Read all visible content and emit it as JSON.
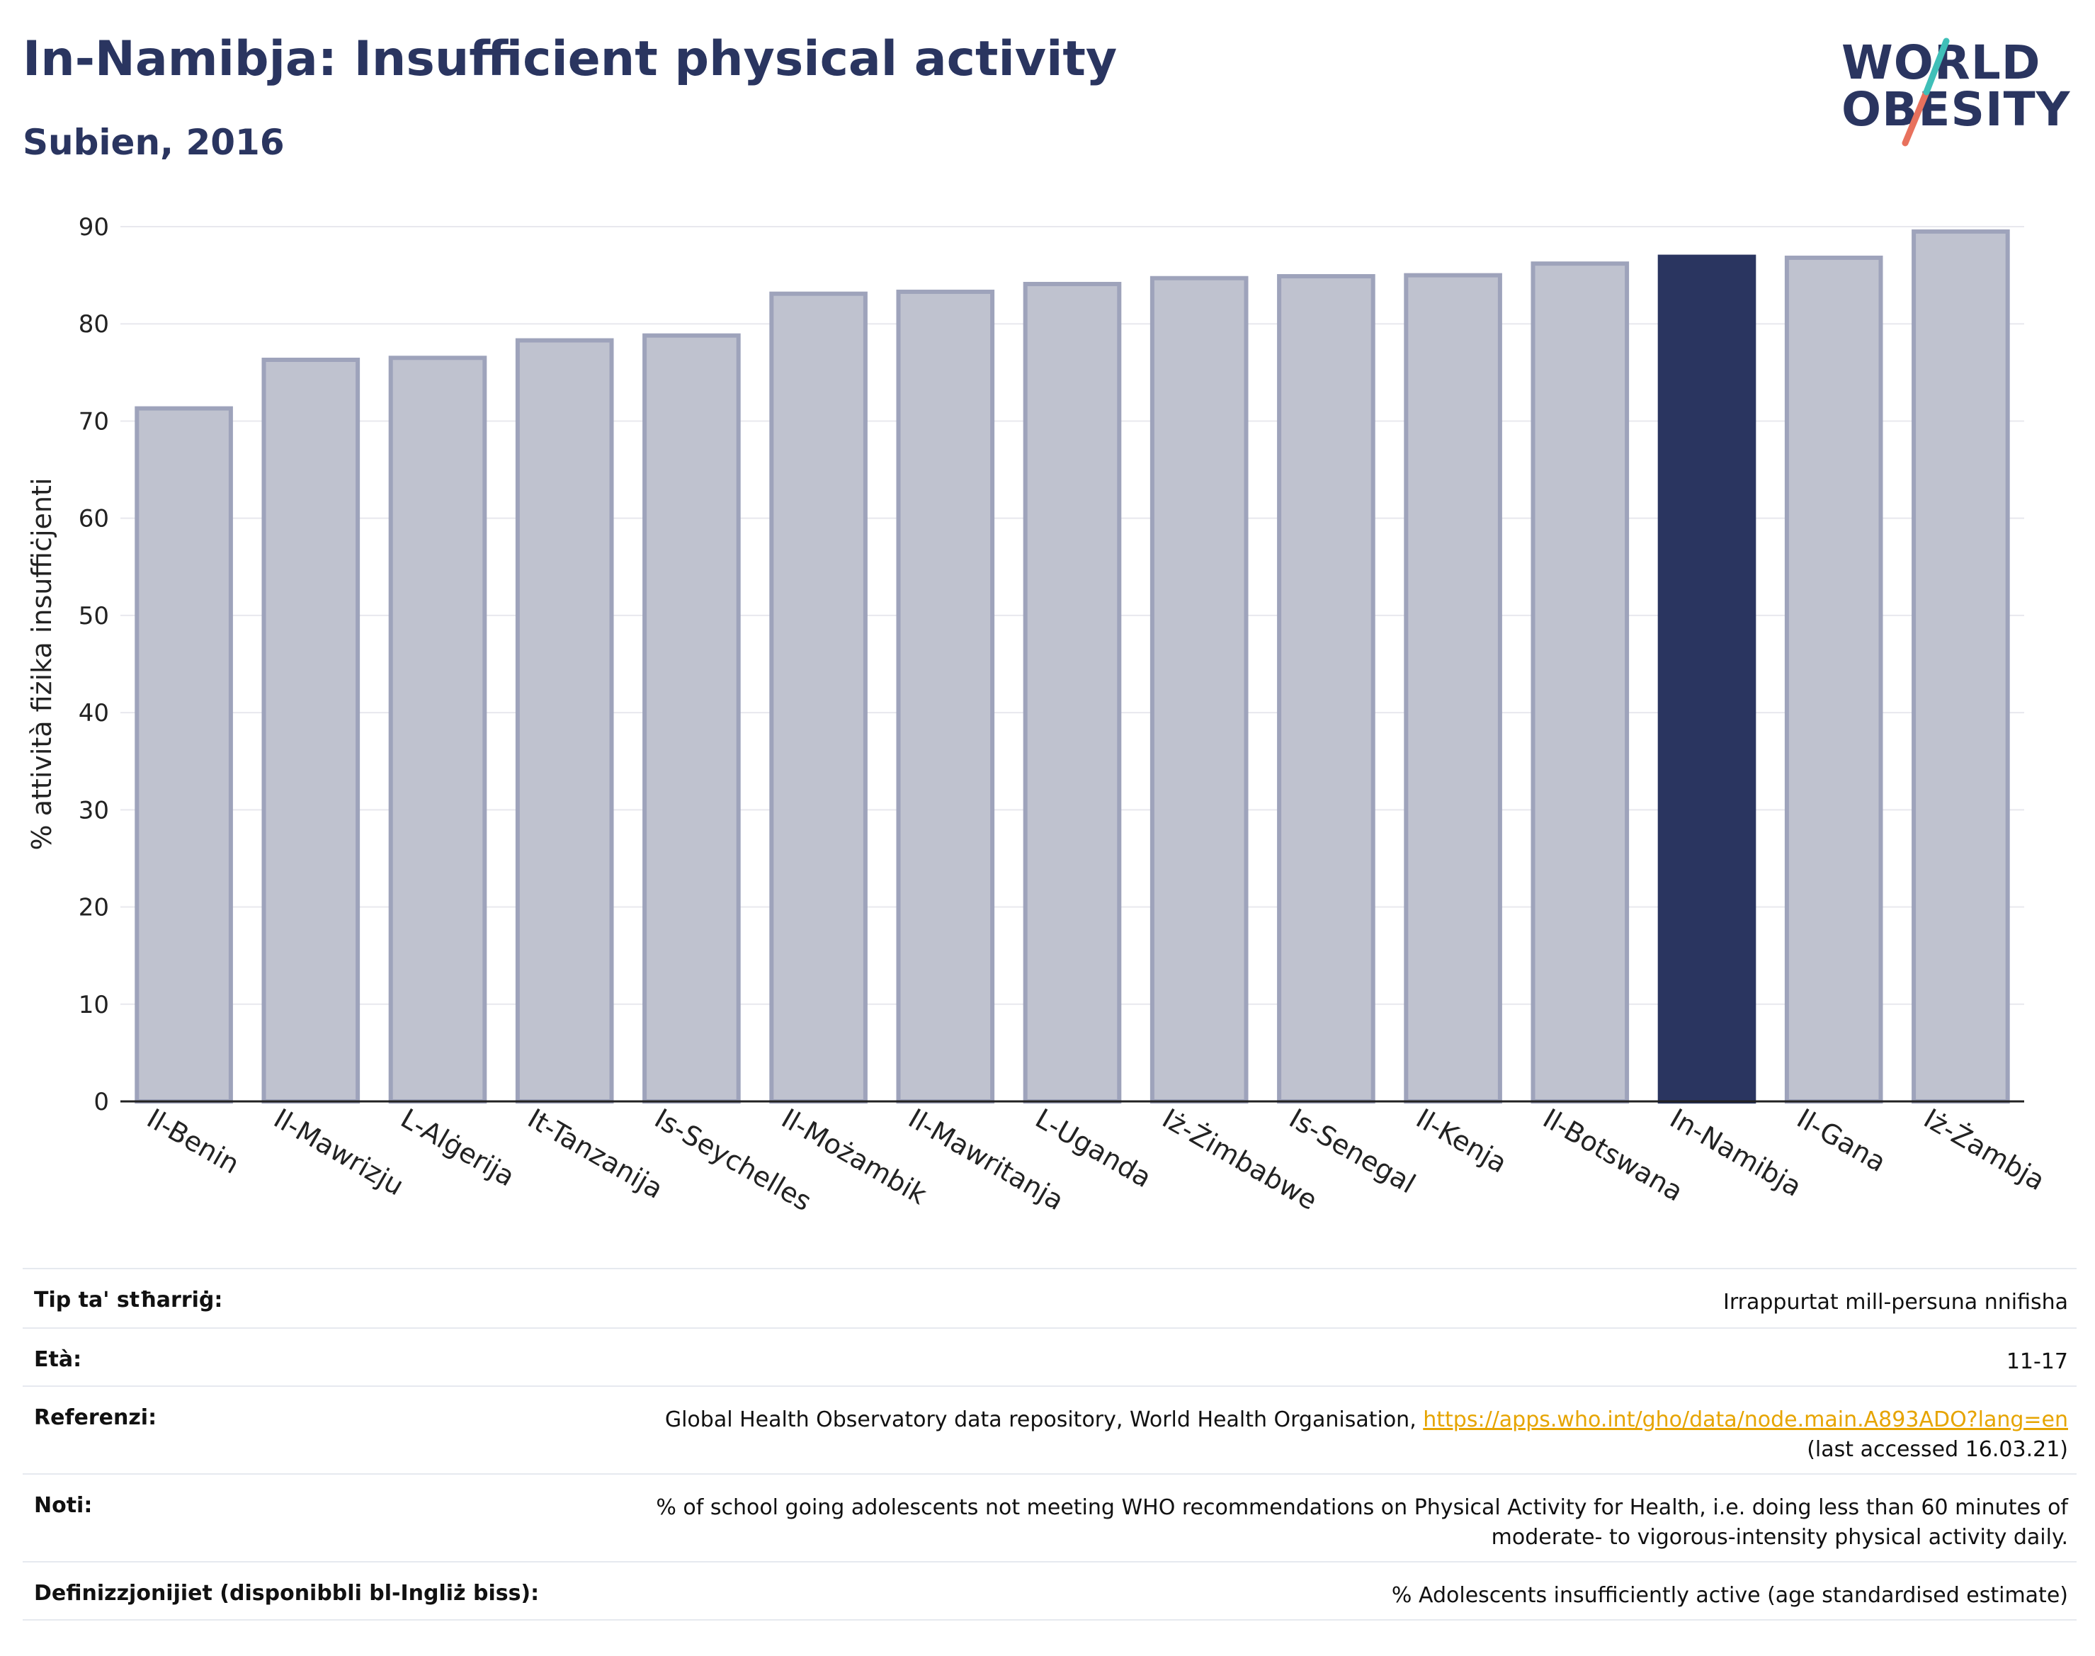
{
  "header": {
    "title": "In-Namibja: Insufficient physical activity",
    "subtitle": "Subien, 2016"
  },
  "logo": {
    "line1": "WORLD",
    "line2": "OBESITY"
  },
  "colors": {
    "bar": "#bfc2cf",
    "bar_stroke": "#9ea3bb",
    "highlight": "#2a3560",
    "grid": "#e8e8ee",
    "link": "#e6a400",
    "logo_teal": "#3fbfb8",
    "logo_coral": "#e8715d"
  },
  "chart_data": {
    "type": "bar",
    "title": "In-Namibja: Insufficient physical activity",
    "subtitle": "Subien, 2016",
    "ylabel": "% attività fiżika insuffiċjenti",
    "ylim": [
      0,
      90
    ],
    "yticks": [
      0,
      10,
      20,
      30,
      40,
      50,
      60,
      70,
      80,
      90
    ],
    "grid": true,
    "highlight": "In-Namibja",
    "categories": [
      "Il-Benin",
      "Il-Mawrizju",
      "L-Alġerija",
      "It-Tanzanija",
      "Is-Seychelles",
      "Il-Możambik",
      "Il-Mawritanja",
      "L-Uganda",
      "Iż-Żimbabwe",
      "Is-Senegal",
      "Il-Kenja",
      "Il-Botswana",
      "In-Namibja",
      "Il-Gana",
      "Iż-Żambja"
    ],
    "values": [
      71.3,
      76.3,
      76.5,
      78.3,
      78.8,
      83.1,
      83.3,
      84.1,
      84.7,
      84.9,
      85.0,
      86.2,
      86.9,
      86.8,
      89.5
    ]
  },
  "meta": [
    {
      "label": "Tip ta' stħarriġ:",
      "value": "Irrappurtat mill-persuna nnifisha"
    },
    {
      "label": "Età:",
      "value": "11-17"
    },
    {
      "label": "Referenzi:",
      "value": "Global Health Observatory data repository, World Health Organisation, ",
      "link": "https://apps.who.int/gho/data/node.main.A893ADO?lang=en",
      "value2": "(last accessed 16.03.21)"
    },
    {
      "label": "Noti:",
      "value": "% of school going adolescents not meeting WHO recommendations on Physical Activity for Health, i.e. doing less than 60 minutes of",
      "value2": "moderate- to vigorous-intensity physical activity daily."
    },
    {
      "label": "Definizzjonijiet (disponibbli bl-Ingliż biss):",
      "value": "% Adolescents insufficiently active (age standardised estimate)"
    }
  ]
}
